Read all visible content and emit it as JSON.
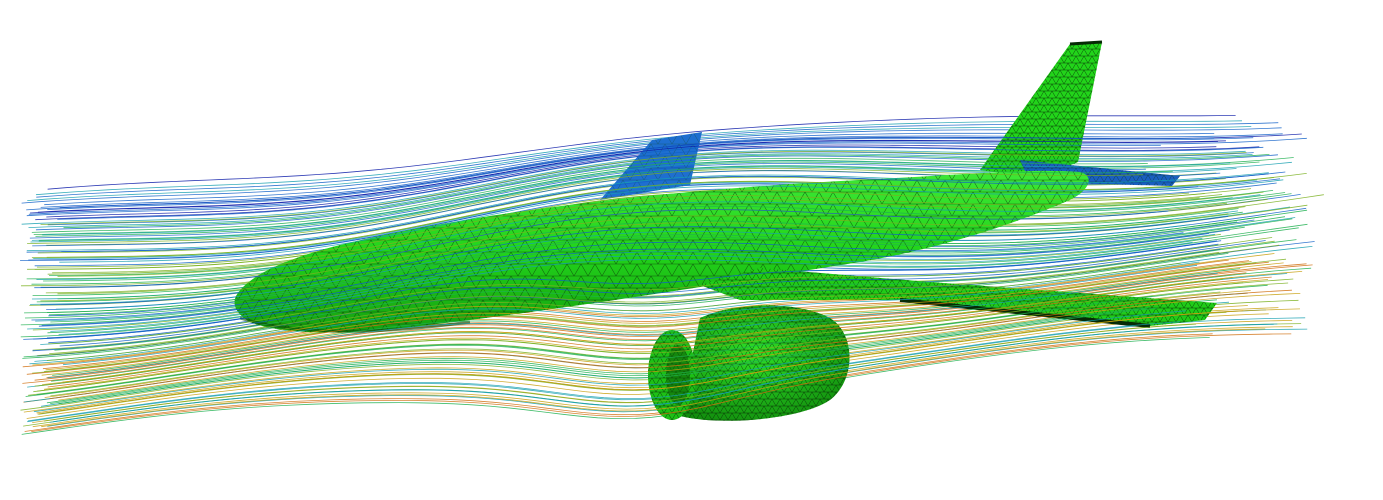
{
  "scene": {
    "background": "#ffffff",
    "aircraft": {
      "surface_color": "#22dd1a",
      "mesh_color": "#0a3a08",
      "components": [
        "fuselage",
        "wing",
        "engine-nacelle",
        "vertical-stabilizer",
        "horizontal-stabilizer",
        "far-wing"
      ]
    },
    "streamlines": {
      "colormap": [
        "#0a1aa8",
        "#1060c8",
        "#18a0b0",
        "#20b050",
        "#7ab020",
        "#c8a010",
        "#d07010"
      ]
    }
  }
}
